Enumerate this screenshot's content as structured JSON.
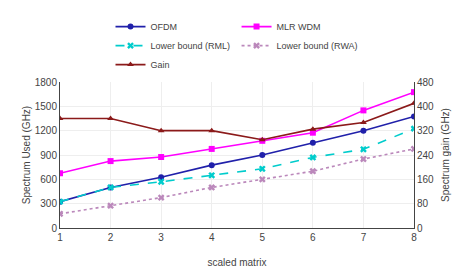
{
  "chart_data": {
    "type": "line",
    "x_label": "scaled matrix",
    "y_label": "Spectrum Used (GHz)",
    "y2_label": "Spectrum gain (GHz)",
    "x": [
      1,
      2,
      3,
      4,
      5,
      6,
      7,
      8
    ],
    "series": [
      {
        "name": "OFDM",
        "color": "#2020AA",
        "marker": "circle",
        "line_style": "solid",
        "values": [
          325,
          500,
          625,
          775,
          900,
          1050,
          1200,
          1375
        ]
      },
      {
        "name": "MLR WDM",
        "color": "#FF00FF",
        "marker": "square",
        "line_style": "solid",
        "values": [
          675,
          825,
          875,
          975,
          1075,
          1175,
          1450,
          1675
        ]
      },
      {
        "name": "Lower bound (RML)",
        "color": "#00CCCC",
        "marker": "x",
        "line_style": "dash",
        "values": [
          325,
          500,
          570,
          650,
          730,
          870,
          970,
          1225
        ]
      },
      {
        "name": "Lower bound (RWA)",
        "color": "#BB88BB",
        "marker": "x",
        "line_style": "dot",
        "values": [
          175,
          275,
          375,
          500,
          600,
          700,
          850,
          975
        ]
      },
      {
        "name": "Gain",
        "color": "#8B1A1A",
        "marker": "triangle-up",
        "line_style": "solid",
        "axis": "y2",
        "values": [
          360,
          360,
          320,
          320,
          290,
          325,
          347,
          410
        ]
      }
    ],
    "xlim": [
      1,
      8
    ],
    "xticks": [
      1,
      2,
      3,
      4,
      5,
      6,
      7,
      8
    ],
    "ylim": [
      0,
      1800
    ],
    "yticks": [
      0,
      300,
      600,
      900,
      1200,
      1500,
      1800
    ],
    "y2lim": [
      0,
      480
    ],
    "y2ticks": [
      0,
      80,
      160,
      240,
      320,
      400,
      480
    ],
    "grid": true,
    "legend": "top"
  }
}
